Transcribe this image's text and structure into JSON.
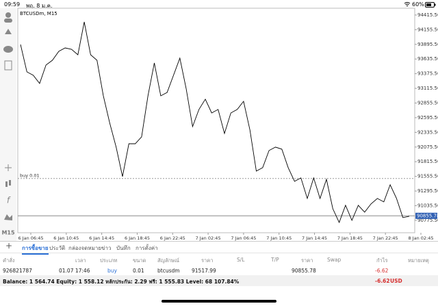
{
  "status_bar": {
    "time": "09:59",
    "date": "พฤ. 8 ม.ค.",
    "battery": "60%"
  },
  "chart": {
    "type": "line",
    "symbol_label": "BTCUSDm, M15",
    "timeframe": "M15",
    "values": [
      93893,
      93408,
      93347,
      93202,
      93529,
      93614,
      93772,
      93832,
      93808,
      93711,
      94293,
      93711,
      93614,
      92983,
      92498,
      92074,
      91552,
      92134,
      92134,
      92256,
      92983,
      93566,
      92983,
      93044,
      93347,
      93651,
      93105,
      92438,
      92741,
      92923,
      92680,
      92741,
      92316,
      92680,
      92741,
      92886,
      92377,
      91649,
      91710,
      92013,
      92074,
      92037,
      91710,
      91467,
      91528,
      91164,
      91528,
      91164,
      91503,
      90982,
      90739,
      91043,
      90776,
      91043,
      90921,
      91067,
      91164,
      91103,
      91407,
      91164,
      90824,
      90848
    ],
    "color": "#000000",
    "x_labels": [
      "6 Jan 06:45",
      "6 Jan 10:45",
      "6 Jan 14:45",
      "6 Jan 18:45",
      "6 Jan 22:45",
      "7 Jan 02:45",
      "7 Jan 06:45",
      "7 Jan 10:45",
      "7 Jan 14:45",
      "7 Jan 18:45",
      "7 Jan 22:45",
      "8 Jan 02:45"
    ],
    "ylim": [
      90556,
      94536
    ],
    "yticks": [
      {
        "value": 94415.5,
        "label": "94415.50"
      },
      {
        "value": 94155.5,
        "label": "94155.50"
      },
      {
        "value": 93895.5,
        "label": "93895.50"
      },
      {
        "value": 93635.5,
        "label": "93635.50"
      },
      {
        "value": 93375.5,
        "label": "93375.50"
      },
      {
        "value": 93115.5,
        "label": "93115.50"
      },
      {
        "value": 92855.5,
        "label": "92855.50"
      },
      {
        "value": 92595.5,
        "label": "92595.50"
      },
      {
        "value": 92335.5,
        "label": "92335.50"
      },
      {
        "value": 92075.5,
        "label": "92075.50"
      },
      {
        "value": 91815.5,
        "label": "91815.50"
      },
      {
        "value": 91555.5,
        "label": "91555.50"
      },
      {
        "value": 91295.5,
        "label": "91295.50"
      },
      {
        "value": 91035.5,
        "label": "91035.50"
      },
      {
        "value": 90775.5,
        "label": "90775.50"
      }
    ],
    "order_line": {
      "label": "buy 0.01",
      "price": 91517.99
    },
    "current_price": 90855.78
  },
  "tabs": [
    "การซื้อขาย",
    "ประวัติ",
    "กล่องจดหมาย",
    "ข่าว",
    "บันทึก",
    "การตั้งค่า"
  ],
  "table": {
    "headers": [
      "คำสั่ง",
      "เวลา",
      "ประเภท",
      "ขนาด",
      "สัญลักษณ์",
      "ราคา",
      "S/L",
      "T/P",
      "ราคา",
      "Swap",
      "กำไร",
      "หมายเหตุ"
    ],
    "row": {
      "ticket": "926821787",
      "time": "01.07 17:46",
      "type": "buy",
      "volume": "0.01",
      "symbol": "btcusdm",
      "open_price": "91517.99",
      "current_price": "90855.78",
      "profit": "-6.62"
    }
  },
  "balance": {
    "text": "Balance: 1 564.74 Equity: 1 558.12 หลักประกัน: 2.29 ฟรี: 1 555.83 Level: 68 107.84%",
    "profit": "-6.62",
    "currency": "USD"
  }
}
